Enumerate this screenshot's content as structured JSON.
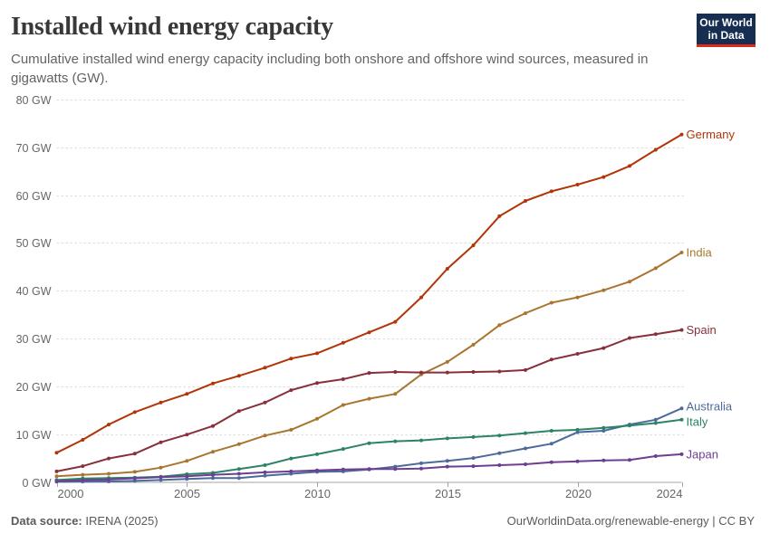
{
  "header": {
    "title": "Installed wind energy capacity",
    "subtitle": "Cumulative installed wind energy capacity including both onshore and offshore wind sources, measured in gigawatts (GW).",
    "logo": {
      "line1": "Our World",
      "line2": "in Data"
    }
  },
  "footer": {
    "source_label": "Data source:",
    "source_value": " IRENA (2025)",
    "attribution": "OurWorldinData.org/renewable-energy | CC BY"
  },
  "chart_data": {
    "type": "line",
    "title": "Installed wind energy capacity",
    "xlabel": "",
    "ylabel": "",
    "x": [
      2000,
      2001,
      2002,
      2003,
      2004,
      2005,
      2006,
      2007,
      2008,
      2009,
      2010,
      2011,
      2012,
      2013,
      2014,
      2015,
      2016,
      2017,
      2018,
      2019,
      2020,
      2021,
      2022,
      2023,
      2024
    ],
    "series": [
      {
        "name": "Germany",
        "color": "#B13507",
        "values": [
          6.1,
          8.8,
          12.0,
          14.6,
          16.6,
          18.4,
          20.6,
          22.2,
          23.9,
          25.8,
          26.9,
          29.1,
          31.3,
          33.5,
          38.6,
          44.6,
          49.5,
          55.6,
          58.8,
          60.8,
          62.2,
          63.8,
          66.1,
          69.5,
          72.7
        ]
      },
      {
        "name": "India",
        "color": "#A9752F",
        "values": [
          1.2,
          1.5,
          1.7,
          2.1,
          3.0,
          4.4,
          6.3,
          7.9,
          9.7,
          10.9,
          13.2,
          16.1,
          17.4,
          18.4,
          22.5,
          25.1,
          28.7,
          32.8,
          35.3,
          37.5,
          38.6,
          40.1,
          41.9,
          44.7,
          48.0
        ]
      },
      {
        "name": "Spain",
        "color": "#883039",
        "values": [
          2.2,
          3.3,
          4.9,
          5.9,
          8.3,
          9.9,
          11.7,
          14.8,
          16.6,
          19.2,
          20.7,
          21.5,
          22.8,
          23.0,
          22.9,
          22.9,
          23.0,
          23.1,
          23.4,
          25.6,
          26.8,
          28.0,
          30.1,
          30.9,
          31.8
        ]
      },
      {
        "name": "Australia",
        "color": "#4C6A9C",
        "values": [
          0.03,
          0.07,
          0.1,
          0.2,
          0.4,
          0.6,
          0.8,
          0.8,
          1.3,
          1.7,
          2.1,
          2.2,
          2.6,
          3.2,
          3.9,
          4.4,
          5.0,
          6.0,
          7.0,
          8.0,
          10.4,
          10.7,
          12.0,
          13.0,
          15.4
        ]
      },
      {
        "name": "Italy",
        "color": "#2C8465",
        "values": [
          0.4,
          0.7,
          0.8,
          0.9,
          1.1,
          1.6,
          1.9,
          2.7,
          3.5,
          4.9,
          5.8,
          6.9,
          8.1,
          8.5,
          8.7,
          9.1,
          9.4,
          9.7,
          10.2,
          10.7,
          10.9,
          11.3,
          11.8,
          12.3,
          13.0
        ]
      },
      {
        "name": "Japan",
        "color": "#6D3E91",
        "values": [
          0.14,
          0.36,
          0.5,
          0.76,
          1.0,
          1.2,
          1.5,
          1.7,
          2.0,
          2.2,
          2.4,
          2.6,
          2.7,
          2.7,
          2.8,
          3.2,
          3.3,
          3.5,
          3.7,
          4.1,
          4.3,
          4.5,
          4.6,
          5.4,
          5.8
        ]
      }
    ],
    "ylim": [
      0,
      80
    ],
    "yticks": [
      0,
      10,
      20,
      30,
      40,
      50,
      60,
      70,
      80
    ],
    "ytick_suffix": " GW",
    "xticks": [
      2000,
      2005,
      2010,
      2015,
      2020,
      2024
    ],
    "grid": true,
    "legend_position": "line-end-labels",
    "colors": {
      "grid": "#DEDEDE",
      "axis": "#A5A5A5",
      "tick_label": "#666666"
    }
  }
}
